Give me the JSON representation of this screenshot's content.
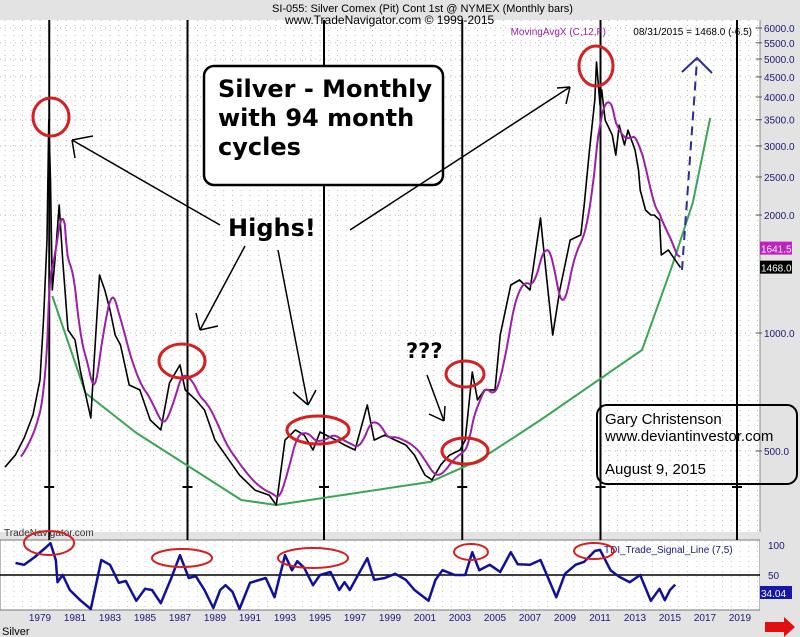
{
  "header": {
    "title": "SI-055:  Silver Comex (Pit) Cont 1st @ NYMEX  (Monthly bars)",
    "subtitle": "www.TradeNavigator.com © 1999-2015",
    "indicator_label": "MovingAvgX (C,12,F)",
    "last_value_label": "08/31/2015 = 1468.0 (-6.5)"
  },
  "watermark": "TradeNavigator.com",
  "symbol_label": "Silver",
  "annotations": {
    "title_box": [
      "Silver - Monthly",
      "with 94 month",
      "cycles"
    ],
    "highs": "Highs!",
    "question": "???",
    "author_box": [
      "Gary Christenson",
      "www.deviantinvestor.com",
      "August 9, 2015"
    ]
  },
  "colors": {
    "price": "#000000",
    "moving_avg": "#9b1fa8",
    "trend": "#3aa655",
    "tdi": "#10109a",
    "highlight": "#d42020",
    "projection": "#2b2b9a"
  },
  "chart_data": [
    {
      "type": "line",
      "panel": "price",
      "scale": "log",
      "ylim": [
        354,
        6300
      ],
      "xlim": [
        1976.8,
        2020.3
      ],
      "grid": true,
      "y_ticks": [
        "6000.0",
        "5500.0",
        "5000.0",
        "4500.0",
        "4000.0",
        "3500.0",
        "3000.0",
        "2500.0",
        "2000.0",
        "1000.0",
        "500.0"
      ],
      "x_ticks": [
        "1979",
        "1981",
        "1983",
        "1985",
        "1987",
        "1989",
        "1991",
        "1993",
        "1995",
        "1997",
        "1999",
        "2001",
        "2003",
        "2005",
        "2007",
        "2009",
        "2011",
        "2013",
        "2015",
        "2017",
        "2019"
      ],
      "cycle_lines": [
        1979.3,
        1987.2,
        1995.0,
        2002.9,
        2010.8,
        2018.6
      ],
      "value_tags": {
        "moving_avg": "1641.5",
        "price": "1468.0"
      },
      "series": [
        {
          "name": "Silver",
          "points": [
            [
              1977.0,
              455
            ],
            [
              1977.6,
              489
            ],
            [
              1978.1,
              540
            ],
            [
              1978.6,
              618
            ],
            [
              1979.0,
              759
            ],
            [
              1979.2,
              1079
            ],
            [
              1979.4,
              1727
            ],
            [
              1979.5,
              3500
            ],
            [
              1979.6,
              2455
            ],
            [
              1979.7,
              1287
            ],
            [
              1979.9,
              1628
            ],
            [
              1980.1,
              2121
            ],
            [
              1980.3,
              1535
            ],
            [
              1980.6,
              1018
            ],
            [
              1981.0,
              960
            ],
            [
              1981.3,
              805
            ],
            [
              1981.9,
              607
            ],
            [
              1982.1,
              853
            ],
            [
              1982.4,
              1406
            ],
            [
              1982.7,
              1287
            ],
            [
              1983.0,
              1145
            ],
            [
              1983.3,
              988
            ],
            [
              1983.6,
              932
            ],
            [
              1984.1,
              737
            ],
            [
              1984.7,
              716
            ],
            [
              1985.3,
              600
            ],
            [
              1985.9,
              566
            ],
            [
              1986.4,
              746
            ],
            [
              1987.0,
              829
            ],
            [
              1987.3,
              716
            ],
            [
              1987.9,
              675
            ],
            [
              1988.4,
              636
            ],
            [
              1989.0,
              533
            ],
            [
              1989.6,
              488
            ],
            [
              1990.4,
              434
            ],
            [
              1991.3,
              397
            ],
            [
              1992.1,
              386
            ],
            [
              1992.5,
              364
            ],
            [
              1993.0,
              533
            ],
            [
              1993.6,
              566
            ],
            [
              1994.1,
              549
            ],
            [
              1994.6,
              503
            ],
            [
              1995.0,
              559
            ],
            [
              1995.9,
              533
            ],
            [
              1996.4,
              518
            ],
            [
              1997.0,
              503
            ],
            [
              1997.7,
              655
            ],
            [
              1998.1,
              533
            ],
            [
              1998.7,
              549
            ],
            [
              1999.3,
              533
            ],
            [
              1999.9,
              518
            ],
            [
              2000.4,
              488
            ],
            [
              2001.0,
              434
            ],
            [
              2001.4,
              422
            ],
            [
              2001.9,
              461
            ],
            [
              2002.4,
              488
            ],
            [
              2003.0,
              503
            ],
            [
              2003.3,
              533
            ],
            [
              2003.7,
              795
            ],
            [
              2004.0,
              675
            ],
            [
              2004.4,
              716
            ],
            [
              2005.0,
              716
            ],
            [
              2005.3,
              988
            ],
            [
              2005.9,
              1326
            ],
            [
              2006.4,
              1365
            ],
            [
              2007.0,
              1287
            ],
            [
              2007.6,
              1966
            ],
            [
              2007.9,
              1448
            ],
            [
              2008.3,
              988
            ],
            [
              2008.7,
              1287
            ],
            [
              2009.3,
              1727
            ],
            [
              2009.9,
              1778
            ],
            [
              2010.1,
              2121
            ],
            [
              2010.4,
              2931
            ],
            [
              2010.7,
              3927
            ],
            [
              2010.8,
              4912
            ],
            [
              2011.0,
              3816
            ],
            [
              2011.1,
              4172
            ],
            [
              2011.3,
              3490
            ],
            [
              2011.7,
              3196
            ],
            [
              2011.9,
              2844
            ],
            [
              2012.1,
              3390
            ],
            [
              2012.4,
              3017
            ],
            [
              2012.6,
              3291
            ],
            [
              2012.8,
              3106
            ],
            [
              2013.0,
              2931
            ],
            [
              2013.2,
              2606
            ],
            [
              2013.3,
              2317
            ],
            [
              2013.6,
              2060
            ],
            [
              2013.9,
              2000
            ],
            [
              2014.1,
              2000
            ],
            [
              2014.4,
              1943
            ],
            [
              2014.5,
              1581
            ],
            [
              2014.9,
              1628
            ],
            [
              2015.6,
              1468
            ]
          ]
        },
        {
          "name": "MovingAvgX (C,12,F)",
          "derived_from": "Silver",
          "period": 12
        },
        {
          "name": "trend",
          "points": [
            [
              1979.7,
              1243
            ],
            [
              1981.6,
              703
            ],
            [
              1984.5,
              556
            ],
            [
              1990.5,
              375
            ],
            [
              1992.5,
              364
            ],
            [
              2001.3,
              417
            ],
            [
              2004.1,
              474
            ],
            [
              2007.6,
              600
            ],
            [
              2013.4,
              905
            ],
            [
              2015.1,
              1473
            ],
            [
              2016.3,
              2146
            ],
            [
              2017.3,
              3536
            ]
          ]
        }
      ]
    },
    {
      "type": "line",
      "panel": "indicator",
      "ylim": [
        -8,
        107
      ],
      "y_ticks": [
        "100",
        "50"
      ],
      "reference_line": 50,
      "value_tag": "34.04",
      "series": [
        {
          "name": "TDI_Trade_Signal_Line (7,5)",
          "points": [
            [
              1977.6,
              70
            ],
            [
              1978.1,
              67
            ],
            [
              1978.7,
              80
            ],
            [
              1979.3,
              95
            ],
            [
              1979.6,
              103
            ],
            [
              1979.9,
              75
            ],
            [
              1980.0,
              38
            ],
            [
              1980.3,
              50
            ],
            [
              1980.7,
              25
            ],
            [
              1981.3,
              8
            ],
            [
              1981.9,
              -8
            ],
            [
              1982.5,
              75
            ],
            [
              1983.0,
              67
            ],
            [
              1983.5,
              37
            ],
            [
              1983.9,
              40
            ],
            [
              1984.5,
              7
            ],
            [
              1985.0,
              27
            ],
            [
              1985.4,
              25
            ],
            [
              1985.9,
              3
            ],
            [
              1986.5,
              45
            ],
            [
              1987.0,
              83
            ],
            [
              1987.5,
              45
            ],
            [
              1987.9,
              48
            ],
            [
              1988.4,
              25
            ],
            [
              1988.9,
              -5
            ],
            [
              1989.3,
              25
            ],
            [
              1989.6,
              33
            ],
            [
              1990.0,
              22
            ],
            [
              1990.4,
              -7
            ],
            [
              1991.0,
              37
            ],
            [
              1991.9,
              45
            ],
            [
              1992.4,
              13
            ],
            [
              1993.0,
              83
            ],
            [
              1993.4,
              58
            ],
            [
              1993.7,
              73
            ],
            [
              1994.1,
              62
            ],
            [
              1994.6,
              33
            ],
            [
              1995.0,
              50
            ],
            [
              1995.6,
              55
            ],
            [
              1996.1,
              25
            ],
            [
              1996.4,
              38
            ],
            [
              1996.7,
              25
            ],
            [
              1997.7,
              78
            ],
            [
              1998.1,
              42
            ],
            [
              1998.7,
              45
            ],
            [
              1999.3,
              52
            ],
            [
              1999.9,
              42
            ],
            [
              2000.4,
              25
            ],
            [
              2001.2,
              7
            ],
            [
              2001.6,
              42
            ],
            [
              2002.0,
              58
            ],
            [
              2002.7,
              50
            ],
            [
              2003.3,
              50
            ],
            [
              2003.7,
              88
            ],
            [
              2004.1,
              58
            ],
            [
              2004.7,
              67
            ],
            [
              2005.3,
              55
            ],
            [
              2005.9,
              88
            ],
            [
              2006.3,
              68
            ],
            [
              2007.0,
              67
            ],
            [
              2007.6,
              75
            ],
            [
              2008.5,
              13
            ],
            [
              2009.0,
              52
            ],
            [
              2009.6,
              67
            ],
            [
              2010.1,
              72
            ],
            [
              2010.7,
              90
            ],
            [
              2011.0,
              92
            ],
            [
              2011.6,
              58
            ],
            [
              2012.1,
              47
            ],
            [
              2012.7,
              38
            ],
            [
              2013.3,
              50
            ],
            [
              2013.9,
              7
            ],
            [
              2014.4,
              27
            ],
            [
              2014.7,
              8
            ],
            [
              2015.0,
              25
            ],
            [
              2015.3,
              34.04
            ]
          ]
        }
      ]
    }
  ]
}
